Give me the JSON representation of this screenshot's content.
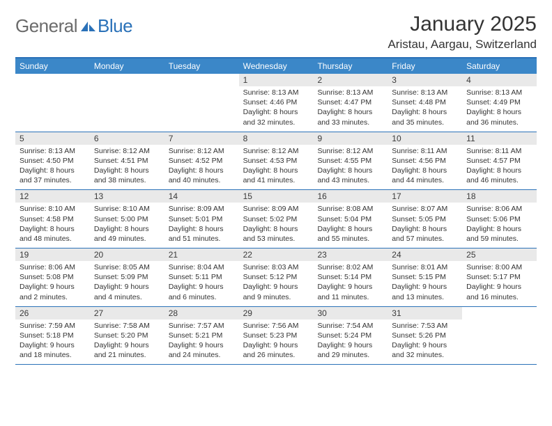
{
  "logo": {
    "general": "General",
    "blue": "Blue"
  },
  "title": "January 2025",
  "location": "Aristau, Aargau, Switzerland",
  "colors": {
    "header_bar": "#3b87c8",
    "accent_border": "#2a71b8",
    "day_num_bg": "#e9e9e9",
    "text": "#333333",
    "logo_gray": "#6b6b6b",
    "logo_blue": "#2a71b8",
    "background": "#ffffff"
  },
  "typography": {
    "title_fontsize": 30,
    "location_fontsize": 17,
    "logo_fontsize": 26,
    "weekday_fontsize": 12,
    "daynum_fontsize": 12,
    "body_fontsize": 10.5
  },
  "weekdays": [
    "Sunday",
    "Monday",
    "Tuesday",
    "Wednesday",
    "Thursday",
    "Friday",
    "Saturday"
  ],
  "weeks": [
    [
      {
        "num": "",
        "sunrise": "",
        "sunset": "",
        "daylight": ""
      },
      {
        "num": "",
        "sunrise": "",
        "sunset": "",
        "daylight": ""
      },
      {
        "num": "",
        "sunrise": "",
        "sunset": "",
        "daylight": ""
      },
      {
        "num": "1",
        "sunrise": "Sunrise: 8:13 AM",
        "sunset": "Sunset: 4:46 PM",
        "daylight": "Daylight: 8 hours and 32 minutes."
      },
      {
        "num": "2",
        "sunrise": "Sunrise: 8:13 AM",
        "sunset": "Sunset: 4:47 PM",
        "daylight": "Daylight: 8 hours and 33 minutes."
      },
      {
        "num": "3",
        "sunrise": "Sunrise: 8:13 AM",
        "sunset": "Sunset: 4:48 PM",
        "daylight": "Daylight: 8 hours and 35 minutes."
      },
      {
        "num": "4",
        "sunrise": "Sunrise: 8:13 AM",
        "sunset": "Sunset: 4:49 PM",
        "daylight": "Daylight: 8 hours and 36 minutes."
      }
    ],
    [
      {
        "num": "5",
        "sunrise": "Sunrise: 8:13 AM",
        "sunset": "Sunset: 4:50 PM",
        "daylight": "Daylight: 8 hours and 37 minutes."
      },
      {
        "num": "6",
        "sunrise": "Sunrise: 8:12 AM",
        "sunset": "Sunset: 4:51 PM",
        "daylight": "Daylight: 8 hours and 38 minutes."
      },
      {
        "num": "7",
        "sunrise": "Sunrise: 8:12 AM",
        "sunset": "Sunset: 4:52 PM",
        "daylight": "Daylight: 8 hours and 40 minutes."
      },
      {
        "num": "8",
        "sunrise": "Sunrise: 8:12 AM",
        "sunset": "Sunset: 4:53 PM",
        "daylight": "Daylight: 8 hours and 41 minutes."
      },
      {
        "num": "9",
        "sunrise": "Sunrise: 8:12 AM",
        "sunset": "Sunset: 4:55 PM",
        "daylight": "Daylight: 8 hours and 43 minutes."
      },
      {
        "num": "10",
        "sunrise": "Sunrise: 8:11 AM",
        "sunset": "Sunset: 4:56 PM",
        "daylight": "Daylight: 8 hours and 44 minutes."
      },
      {
        "num": "11",
        "sunrise": "Sunrise: 8:11 AM",
        "sunset": "Sunset: 4:57 PM",
        "daylight": "Daylight: 8 hours and 46 minutes."
      }
    ],
    [
      {
        "num": "12",
        "sunrise": "Sunrise: 8:10 AM",
        "sunset": "Sunset: 4:58 PM",
        "daylight": "Daylight: 8 hours and 48 minutes."
      },
      {
        "num": "13",
        "sunrise": "Sunrise: 8:10 AM",
        "sunset": "Sunset: 5:00 PM",
        "daylight": "Daylight: 8 hours and 49 minutes."
      },
      {
        "num": "14",
        "sunrise": "Sunrise: 8:09 AM",
        "sunset": "Sunset: 5:01 PM",
        "daylight": "Daylight: 8 hours and 51 minutes."
      },
      {
        "num": "15",
        "sunrise": "Sunrise: 8:09 AM",
        "sunset": "Sunset: 5:02 PM",
        "daylight": "Daylight: 8 hours and 53 minutes."
      },
      {
        "num": "16",
        "sunrise": "Sunrise: 8:08 AM",
        "sunset": "Sunset: 5:04 PM",
        "daylight": "Daylight: 8 hours and 55 minutes."
      },
      {
        "num": "17",
        "sunrise": "Sunrise: 8:07 AM",
        "sunset": "Sunset: 5:05 PM",
        "daylight": "Daylight: 8 hours and 57 minutes."
      },
      {
        "num": "18",
        "sunrise": "Sunrise: 8:06 AM",
        "sunset": "Sunset: 5:06 PM",
        "daylight": "Daylight: 8 hours and 59 minutes."
      }
    ],
    [
      {
        "num": "19",
        "sunrise": "Sunrise: 8:06 AM",
        "sunset": "Sunset: 5:08 PM",
        "daylight": "Daylight: 9 hours and 2 minutes."
      },
      {
        "num": "20",
        "sunrise": "Sunrise: 8:05 AM",
        "sunset": "Sunset: 5:09 PM",
        "daylight": "Daylight: 9 hours and 4 minutes."
      },
      {
        "num": "21",
        "sunrise": "Sunrise: 8:04 AM",
        "sunset": "Sunset: 5:11 PM",
        "daylight": "Daylight: 9 hours and 6 minutes."
      },
      {
        "num": "22",
        "sunrise": "Sunrise: 8:03 AM",
        "sunset": "Sunset: 5:12 PM",
        "daylight": "Daylight: 9 hours and 9 minutes."
      },
      {
        "num": "23",
        "sunrise": "Sunrise: 8:02 AM",
        "sunset": "Sunset: 5:14 PM",
        "daylight": "Daylight: 9 hours and 11 minutes."
      },
      {
        "num": "24",
        "sunrise": "Sunrise: 8:01 AM",
        "sunset": "Sunset: 5:15 PM",
        "daylight": "Daylight: 9 hours and 13 minutes."
      },
      {
        "num": "25",
        "sunrise": "Sunrise: 8:00 AM",
        "sunset": "Sunset: 5:17 PM",
        "daylight": "Daylight: 9 hours and 16 minutes."
      }
    ],
    [
      {
        "num": "26",
        "sunrise": "Sunrise: 7:59 AM",
        "sunset": "Sunset: 5:18 PM",
        "daylight": "Daylight: 9 hours and 18 minutes."
      },
      {
        "num": "27",
        "sunrise": "Sunrise: 7:58 AM",
        "sunset": "Sunset: 5:20 PM",
        "daylight": "Daylight: 9 hours and 21 minutes."
      },
      {
        "num": "28",
        "sunrise": "Sunrise: 7:57 AM",
        "sunset": "Sunset: 5:21 PM",
        "daylight": "Daylight: 9 hours and 24 minutes."
      },
      {
        "num": "29",
        "sunrise": "Sunrise: 7:56 AM",
        "sunset": "Sunset: 5:23 PM",
        "daylight": "Daylight: 9 hours and 26 minutes."
      },
      {
        "num": "30",
        "sunrise": "Sunrise: 7:54 AM",
        "sunset": "Sunset: 5:24 PM",
        "daylight": "Daylight: 9 hours and 29 minutes."
      },
      {
        "num": "31",
        "sunrise": "Sunrise: 7:53 AM",
        "sunset": "Sunset: 5:26 PM",
        "daylight": "Daylight: 9 hours and 32 minutes."
      },
      {
        "num": "",
        "sunrise": "",
        "sunset": "",
        "daylight": ""
      }
    ]
  ]
}
